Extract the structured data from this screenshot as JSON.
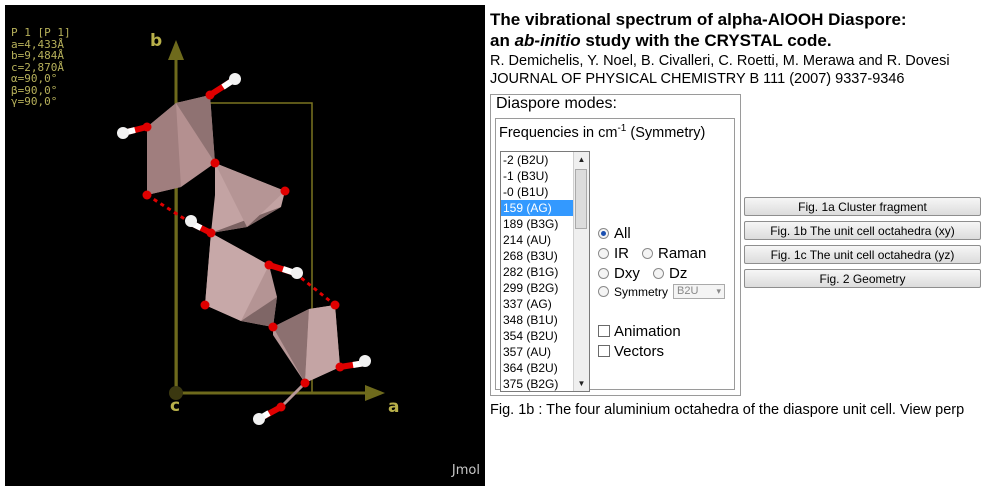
{
  "header": {
    "title_line1": "The vibrational spectrum of alpha-AlOOH Diaspore:",
    "title_pre": "an ",
    "title_em": "ab-initio",
    "title_post": " study with the CRYSTAL code.",
    "authors": "R. Demichelis, Y. Noel, B. Civalleri, C. Roetti, M. Merawa and R. Dovesi",
    "journal": "JOURNAL OF PHYSICAL CHEMISTRY B 111 (2007) 9337-9346"
  },
  "viewer": {
    "cell_info": [
      "P 1 [P 1]",
      "a=4,433Å",
      "b=9,484Å",
      "c=2,870Å",
      "α=90,0°",
      "β=90,0°",
      "γ=90,0°"
    ],
    "axis_a": "a",
    "axis_b": "b",
    "axis_c": "c",
    "watermark": "Jmol",
    "colors": {
      "axis": "#6e6a1c",
      "oxygen": "#e00000",
      "hydrogen": "#ffffff",
      "octahedron": "#b89898",
      "cell": "#7a7420"
    }
  },
  "panel": {
    "title": "Diaspore modes:",
    "freq_title_pre": "Frequencies in cm",
    "freq_title_sup": "-1",
    "freq_title_post": " (Symmetry)",
    "modes": [
      "-2 (B2U)",
      "-1 (B3U)",
      "-0 (B1U)",
      "159 (AG)",
      "189 (B3G)",
      "214 (AU)",
      "268 (B3U)",
      "282 (B1G)",
      "299 (B2G)",
      "337 (AG)",
      "348 (B1U)",
      "354 (B2U)",
      "357 (AU)",
      "364 (B2U)",
      "375 (B2G)"
    ],
    "selected_mode": "159 (AG)",
    "radio_all": "All",
    "radio_ir": "IR",
    "radio_raman": "Raman",
    "radio_dxy": "Dxy",
    "radio_dz": "Dz",
    "radio_symmetry": "Symmetry",
    "symmetry_value": "B2U",
    "checkbox_animation": "Animation",
    "checkbox_vectors": "Vectors"
  },
  "buttons": {
    "fig1a": "Fig. 1a Cluster fragment",
    "fig1b": "Fig. 1b The unit cell octahedra (xy)",
    "fig1c": "Fig. 1c The unit cell octahedra (yz)",
    "fig2": "Fig. 2 Geometry"
  },
  "caption": "Fig. 1b : The four aluminium octahedra of the diaspore unit cell. View perp"
}
